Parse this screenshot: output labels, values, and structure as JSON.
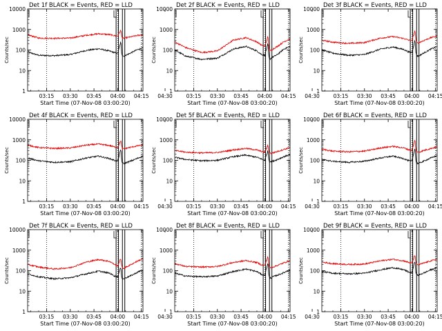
{
  "page": {
    "background": "#ffffff"
  },
  "legend_text": "BLACK = Events, RED = LLD",
  "axis": {
    "ylabel": "Counts/sec",
    "xlabel": "Start Time (07-Nov-08 03:00:20)",
    "ylim": [
      1,
      10000
    ],
    "yscale": "log",
    "y_ticks": [
      "1",
      "10",
      "100",
      "1000",
      "10000"
    ],
    "xlim_min": [
      3,
      76
    ],
    "x_ticks": [
      "03:15",
      "03:30",
      "03:45",
      "04:00",
      "04:15",
      "04:30"
    ],
    "x_tick_minutes": [
      15,
      30,
      45,
      60,
      75,
      90
    ],
    "dotted_v_minutes": [
      15,
      60,
      75
    ],
    "solid_v_minutes": [
      59,
      60.5,
      63,
      64.5
    ]
  },
  "colors": {
    "events": "#000000",
    "lld": "#e00000",
    "axes": "#000000"
  },
  "chart_data": [
    {
      "type": "line",
      "title": "Det 1f  BLACK = Events, RED = LLD",
      "ylabel": "Counts/sec",
      "xlabel": "Start Time (07-Nov-08 03:00:20)",
      "x_minutes": [
        3,
        10,
        20,
        30,
        40,
        48,
        55,
        58,
        60,
        62,
        62.5,
        63,
        64,
        65,
        68,
        72,
        76
      ],
      "series": [
        {
          "name": "Events",
          "values": [
            80,
            55,
            53,
            60,
            95,
            115,
            88,
            75,
            68,
            250,
            70,
            55,
            50,
            55,
            70,
            100,
            130
          ]
        },
        {
          "name": "LLD",
          "values": [
            550,
            380,
            370,
            380,
            520,
            620,
            560,
            500,
            480,
            900,
            500,
            380,
            370,
            390,
            430,
            500,
            560
          ]
        }
      ]
    },
    {
      "type": "line",
      "title": "Det 2f  BLACK = Events, RED = LLD",
      "ylabel": "Counts/sec",
      "xlabel": "Start Time (07-Nov-08 03:00:20)",
      "x_minutes": [
        3,
        10,
        20,
        30,
        40,
        48,
        55,
        58,
        60,
        62,
        62.5,
        63,
        64,
        65,
        68,
        72,
        76
      ],
      "series": [
        {
          "name": "Events",
          "values": [
            100,
            50,
            35,
            40,
            110,
            150,
            90,
            60,
            55,
            200,
            50,
            35,
            40,
            45,
            60,
            110,
            150
          ]
        },
        {
          "name": "LLD",
          "values": [
            250,
            130,
            75,
            90,
            300,
            400,
            250,
            170,
            150,
            450,
            150,
            90,
            95,
            110,
            150,
            250,
            350
          ]
        }
      ]
    },
    {
      "type": "line",
      "title": "Det 3f  BLACK = Events, RED = LLD",
      "ylabel": "Counts/sec",
      "xlabel": "Start Time (07-Nov-08 03:00:20)",
      "x_minutes": [
        3,
        10,
        20,
        30,
        40,
        48,
        55,
        58,
        60,
        62,
        62.5,
        63,
        64,
        65,
        68,
        72,
        76
      ],
      "series": [
        {
          "name": "Events",
          "values": [
            100,
            70,
            55,
            60,
            110,
            140,
            105,
            80,
            75,
            300,
            80,
            55,
            50,
            55,
            75,
            110,
            150
          ]
        },
        {
          "name": "LLD",
          "values": [
            300,
            240,
            210,
            230,
            380,
            450,
            360,
            300,
            280,
            900,
            330,
            230,
            220,
            240,
            300,
            400,
            480
          ]
        }
      ]
    },
    {
      "type": "line",
      "title": "Det 4f  BLACK = Events, RED = LLD",
      "ylabel": "Counts/sec",
      "xlabel": "Start Time (07-Nov-08 03:00:20)",
      "x_minutes": [
        3,
        10,
        20,
        30,
        40,
        48,
        55,
        58,
        60,
        62,
        62.5,
        63,
        64,
        65,
        68,
        72,
        76
      ],
      "series": [
        {
          "name": "Events",
          "values": [
            130,
            95,
            80,
            85,
            130,
            160,
            120,
            100,
            90,
            350,
            100,
            75,
            70,
            75,
            90,
            120,
            160
          ]
        },
        {
          "name": "LLD",
          "values": [
            550,
            420,
            380,
            400,
            550,
            620,
            520,
            450,
            420,
            950,
            460,
            370,
            360,
            380,
            430,
            500,
            560
          ]
        }
      ]
    },
    {
      "type": "line",
      "title": "Det 5f  BLACK = Events, RED = LLD",
      "ylabel": "Counts/sec",
      "xlabel": "Start Time (07-Nov-08 03:00:20)",
      "x_minutes": [
        3,
        10,
        20,
        30,
        40,
        48,
        55,
        58,
        60,
        62,
        62.5,
        63,
        64,
        65,
        68,
        72,
        76
      ],
      "series": [
        {
          "name": "Events",
          "values": [
            140,
            110,
            95,
            100,
            150,
            180,
            140,
            115,
            100,
            300,
            110,
            90,
            85,
            90,
            110,
            150,
            190
          ]
        },
        {
          "name": "LLD",
          "values": [
            300,
            250,
            230,
            240,
            320,
            380,
            320,
            270,
            250,
            550,
            270,
            230,
            220,
            230,
            270,
            340,
            420
          ]
        }
      ]
    },
    {
      "type": "line",
      "title": "Det 6f  BLACK = Events, RED = LLD",
      "ylabel": "Counts/sec",
      "xlabel": "Start Time (07-Nov-08 03:00:20)",
      "x_minutes": [
        3,
        10,
        20,
        30,
        40,
        48,
        55,
        58,
        60,
        62,
        62.5,
        63,
        64,
        65,
        68,
        72,
        76
      ],
      "series": [
        {
          "name": "Events",
          "values": [
            110,
            90,
            80,
            90,
            130,
            160,
            120,
            95,
            90,
            400,
            95,
            75,
            70,
            75,
            95,
            130,
            170
          ]
        },
        {
          "name": "LLD",
          "values": [
            350,
            280,
            260,
            280,
            400,
            480,
            400,
            330,
            300,
            1000,
            320,
            260,
            250,
            260,
            310,
            380,
            450
          ]
        }
      ]
    },
    {
      "type": "line",
      "title": "Det 7f  BLACK = Events, RED = LLD",
      "ylabel": "Counts/sec",
      "xlabel": "Start Time (07-Nov-08 03:00:20)",
      "x_minutes": [
        3,
        10,
        20,
        30,
        40,
        48,
        55,
        58,
        60,
        62,
        62.5,
        63,
        64,
        65,
        68,
        72,
        76
      ],
      "series": [
        {
          "name": "Events",
          "values": [
            70,
            50,
            40,
            45,
            70,
            95,
            75,
            55,
            50,
            150,
            50,
            40,
            40,
            45,
            55,
            80,
            110
          ]
        },
        {
          "name": "LLD",
          "values": [
            200,
            150,
            120,
            140,
            260,
            350,
            280,
            200,
            170,
            400,
            170,
            130,
            130,
            145,
            190,
            280,
            380
          ]
        }
      ]
    },
    {
      "type": "line",
      "title": "Det 8f  BLACK = Events, RED = LLD",
      "ylabel": "Counts/sec",
      "xlabel": "Start Time (07-Nov-08 03:00:20)",
      "x_minutes": [
        3,
        10,
        20,
        30,
        40,
        48,
        55,
        58,
        60,
        62,
        62.5,
        63,
        64,
        65,
        68,
        72,
        76
      ],
      "series": [
        {
          "name": "Events",
          "values": [
            75,
            55,
            50,
            55,
            90,
            120,
            90,
            65,
            60,
            250,
            60,
            45,
            45,
            50,
            60,
            80,
            110
          ]
        },
        {
          "name": "LLD",
          "values": [
            220,
            160,
            150,
            160,
            250,
            310,
            250,
            190,
            180,
            500,
            180,
            140,
            140,
            150,
            180,
            240,
            310
          ]
        }
      ]
    },
    {
      "type": "line",
      "title": "Det 9f  BLACK = Events, RED = LLD",
      "ylabel": "Counts/sec",
      "xlabel": "Start Time (07-Nov-08 03:00:20)",
      "x_minutes": [
        3,
        10,
        20,
        30,
        40,
        48,
        55,
        58,
        60,
        62,
        62.5,
        63,
        64,
        65,
        68,
        72,
        76
      ],
      "series": [
        {
          "name": "Events",
          "values": [
            90,
            75,
            70,
            75,
            110,
            140,
            110,
            85,
            80,
            300,
            85,
            65,
            60,
            65,
            80,
            110,
            140
          ]
        },
        {
          "name": "LLD",
          "values": [
            260,
            220,
            200,
            210,
            300,
            360,
            300,
            250,
            230,
            600,
            240,
            200,
            195,
            205,
            240,
            300,
            360
          ]
        }
      ]
    }
  ]
}
